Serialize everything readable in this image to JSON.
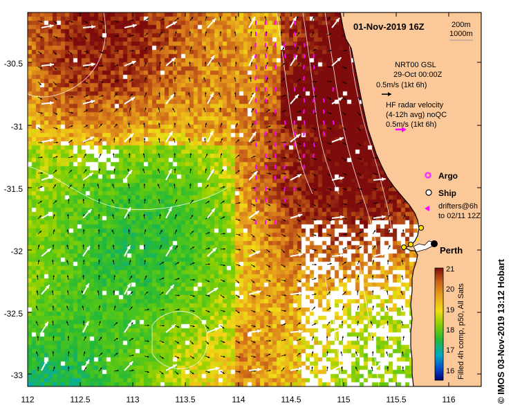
{
  "map": {
    "title": "01-Nov-2019 16Z",
    "depth_legend": [
      "200m",
      "1000m"
    ],
    "model_label": "NRT00 GSL",
    "model_time": "29-Oct 00:00Z",
    "model_scale": "0.5m/s (1kt 6h)",
    "radar_label_1": "HF radar velocity",
    "radar_label_2": "(4-12h avg) noQC",
    "radar_scale": "0.5m/s (1kt 6h)",
    "argo_label": "Argo",
    "ship_label": "Ship",
    "drifters_label_1": "drifters@6h",
    "drifters_label_2": "to 02/11 12Z",
    "city_label": "Perth",
    "colorbar_title": "Filled 4h comp, p50, All Sats",
    "colorbar_ticks": [
      "21",
      "20",
      "19",
      "18",
      "17",
      "16"
    ],
    "colorbar_min": 15.5,
    "colorbar_max": 21,
    "credit": "© IMOS 03-Nov-2019 13:12 Hobart",
    "y_ticks": [
      "-30.5",
      "-31",
      "-31.5",
      "-32",
      "-32.5",
      "-33"
    ],
    "x_ticks": [
      "112",
      "112.5",
      "113",
      "113.5",
      "114",
      "114.5",
      "115",
      "115.5",
      "116"
    ],
    "lon_range": [
      112,
      116.3
    ],
    "lat_range": [
      -33.12,
      -30.12
    ],
    "colors": {
      "land": "#fbc89a",
      "coast": "#000000",
      "argo": "#ff33ff",
      "radar_arrow": "#ff00ff",
      "model_arrow": "#ffffff"
    },
    "cities": [
      {
        "name": "Perth",
        "lon": 115.86,
        "lat": -31.95
      }
    ],
    "ships": [
      {
        "lon": 115.72,
        "lat": -31.82
      },
      {
        "lon": 115.62,
        "lat": -31.97
      },
      {
        "lon": 115.57,
        "lat": -31.99
      }
    ]
  }
}
